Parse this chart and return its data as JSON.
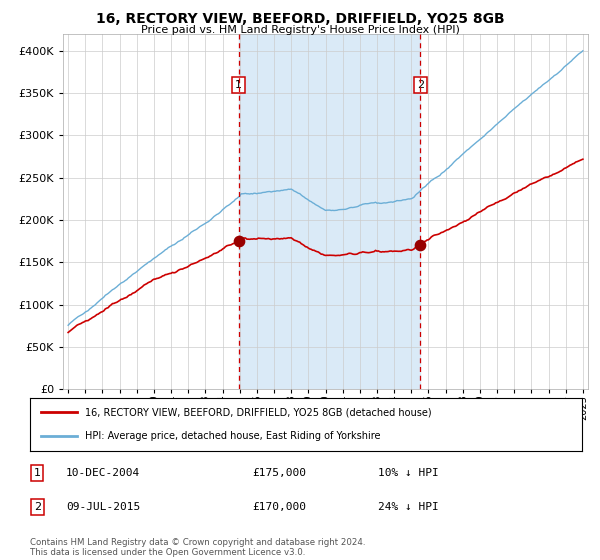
{
  "title": "16, RECTORY VIEW, BEEFORD, DRIFFIELD, YO25 8GB",
  "subtitle": "Price paid vs. HM Land Registry's House Price Index (HPI)",
  "legend_line1": "16, RECTORY VIEW, BEEFORD, DRIFFIELD, YO25 8GB (detached house)",
  "legend_line2": "HPI: Average price, detached house, East Riding of Yorkshire",
  "annotation1_label": "1",
  "annotation1_date": "10-DEC-2004",
  "annotation1_price": "£175,000",
  "annotation1_hpi": "10% ↓ HPI",
  "annotation2_label": "2",
  "annotation2_date": "09-JUL-2015",
  "annotation2_price": "£170,000",
  "annotation2_hpi": "24% ↓ HPI",
  "footnote": "Contains HM Land Registry data © Crown copyright and database right 2024.\nThis data is licensed under the Open Government Licence v3.0.",
  "hpi_color": "#6baed6",
  "price_color": "#cc0000",
  "marker_color": "#990000",
  "vline_color": "#cc0000",
  "shade_color": "#daeaf7",
  "background_color": "#ffffff",
  "grid_color": "#cccccc",
  "ylim": [
    0,
    420000
  ],
  "yticks": [
    0,
    50000,
    100000,
    150000,
    200000,
    250000,
    300000,
    350000,
    400000
  ],
  "year_start": 1995,
  "year_end": 2025,
  "sale1_year": 2004.94,
  "sale1_price": 175000,
  "sale2_year": 2015.52,
  "sale2_price": 170000
}
